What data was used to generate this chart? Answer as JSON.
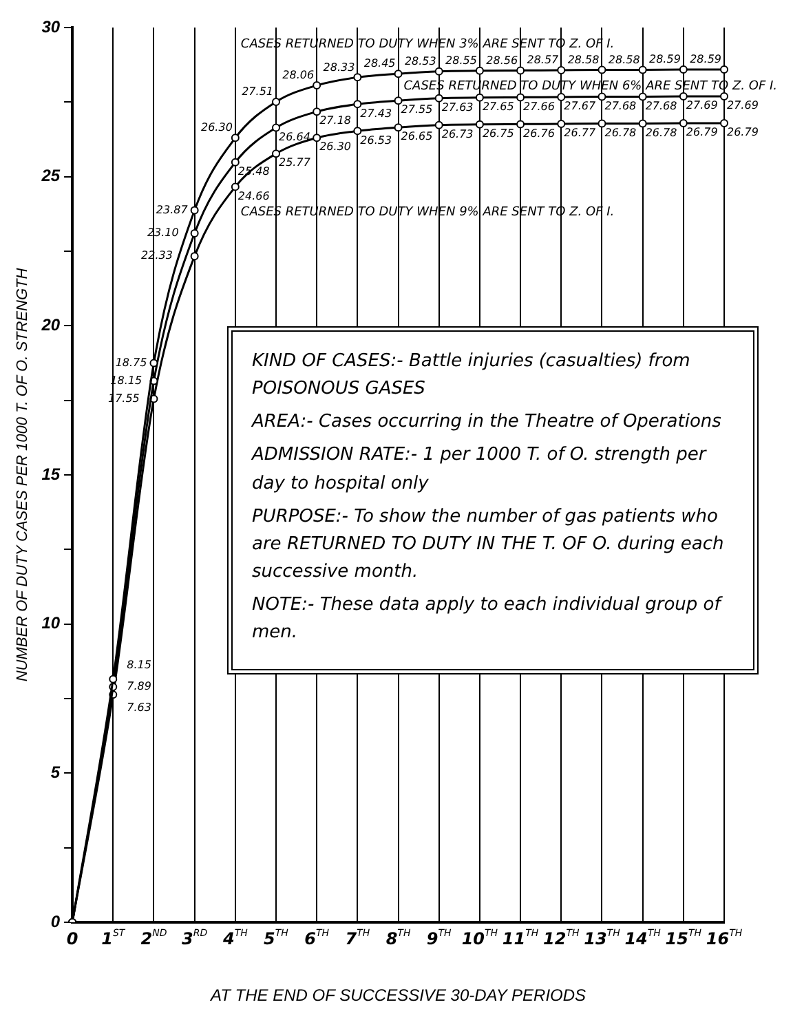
{
  "chart_data": {
    "type": "line",
    "xlabel": "AT THE END OF SUCCESSIVE 30-DAY PERIODS",
    "ylabel": "NUMBER OF DUTY CASES PER 1000 T. OF O. STRENGTH",
    "categories": [
      "0",
      "1$^{ST}$",
      "2$^{ND}$",
      "3$^{RD}$",
      "4$^{TH}$",
      "5$^{TH}$",
      "6$^{TH}$",
      "7$^{TH}$",
      "8$^{TH}$",
      "9$^{TH}$",
      "10$^{TH}$",
      "11$^{TH}$",
      "12$^{TH}$",
      "13$^{TH}$",
      "14$^{TH}$",
      "15$^{TH}$",
      "16$^{TH}$"
    ],
    "series": [
      {
        "name": "CASES RETURNED TO DUTY WHEN 3% ARE SENT TO Z. OF I.",
        "color": "#000000",
        "values": [
          0,
          8.15,
          18.75,
          23.87,
          26.3,
          27.51,
          28.06,
          28.33,
          28.45,
          28.53,
          28.55,
          28.56,
          28.57,
          28.58,
          28.58,
          28.59,
          28.59
        ],
        "value_labels": [
          null,
          "8.15",
          "18.75",
          "23.87",
          "26.30",
          "27.51",
          "28.06",
          "28.33",
          "28.45",
          "28.53",
          "28.55",
          "28.56",
          "28.57",
          "28.58",
          "28.58",
          "28.59",
          "28.59"
        ]
      },
      {
        "name": "CASES RETURNED TO DUTY WHEN 6% ARE SENT TO Z. OF I.",
        "color": "#000000",
        "values": [
          0,
          7.89,
          18.15,
          23.1,
          25.48,
          26.64,
          27.18,
          27.43,
          27.55,
          27.63,
          27.65,
          27.66,
          27.67,
          27.68,
          27.68,
          27.69,
          27.69
        ],
        "value_labels": [
          null,
          "7.89",
          "18.15",
          "23.10",
          "25.48",
          "26.64",
          "27.18",
          "27.43",
          "27.55",
          "27.63",
          "27.65",
          "27.66",
          "27.67",
          "27.68",
          "27.68",
          "27.69",
          "27.69"
        ]
      },
      {
        "name": "CASES RETURNED TO DUTY WHEN 9% ARE SENT TO Z. OF I.",
        "color": "#000000",
        "values": [
          0,
          7.63,
          17.55,
          22.33,
          24.66,
          25.77,
          26.3,
          26.53,
          26.65,
          26.73,
          26.75,
          26.76,
          26.77,
          26.78,
          26.78,
          26.79,
          26.79
        ],
        "value_labels": [
          null,
          "7.63",
          "17.55",
          "22.33",
          "24.66",
          "25.77",
          "26.30",
          "26.53",
          "26.65",
          "26.73",
          "26.75",
          "26.76",
          "26.77",
          "26.78",
          "26.78",
          "26.79",
          "26.79"
        ]
      }
    ],
    "ylim": [
      0,
      30
    ],
    "yticks": [
      0,
      {
        "value": 2.5,
        "label": null
      },
      5,
      {
        "value": 7.5,
        "label": null
      },
      10,
      {
        "value": 12.5,
        "label": null
      },
      15,
      {
        "value": 17.5,
        "label": null
      },
      20,
      {
        "value": 22.5,
        "label": null
      },
      25,
      {
        "value": 27.5,
        "label": null
      },
      30
    ],
    "grid": "x",
    "legend": false,
    "marker": "circle",
    "line_style": "solid",
    "annotations": [
      "KIND OF CASES:- Battle injuries (casualties) from POISONOUS GASES",
      "AREA:- Cases occurring in the Theatre of Operations",
      "ADMISSION RATE:- 1 per 1000 T. of O. strength per day to hospital only",
      "PURPOSE:- To show the number of gas patients who are RETURNED TO DUTY IN THE T. OF O. during each successive month.",
      "NOTE:- These data apply to each individual group of men."
    ]
  }
}
